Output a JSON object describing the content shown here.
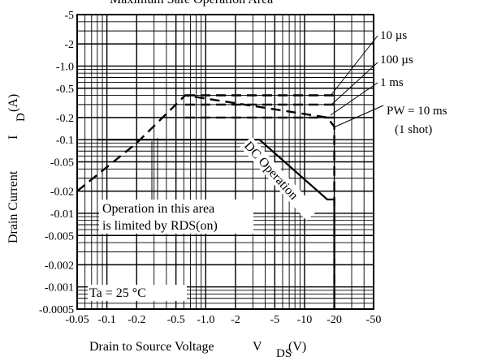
{
  "chart_data": {
    "type": "line",
    "title": "Maximum Safe Operation Area",
    "xlabel": "Drain to Source Voltage",
    "xlabel_symbol": "V",
    "xlabel_subscript": "DS",
    "xlabel_unit": "(V)",
    "ylabel": "Drain Current",
    "ylabel_symbol": "I",
    "ylabel_subscript": "D",
    "ylabel_unit": "(A)",
    "x_scale": "log",
    "y_scale": "log",
    "xlim": [
      -0.05,
      -50
    ],
    "ylim": [
      -0.0005,
      -5
    ],
    "grid": true,
    "x_ticks": [
      {
        "value": -0.05,
        "label": "-0.05"
      },
      {
        "value": -0.1,
        "label": "-0.1"
      },
      {
        "value": -0.2,
        "label": "-0.2"
      },
      {
        "value": -0.5,
        "label": "-0.5"
      },
      {
        "value": -1.0,
        "label": "-1.0"
      },
      {
        "value": -2,
        "label": "-2"
      },
      {
        "value": -5,
        "label": "-5"
      },
      {
        "value": -10,
        "label": "-10"
      },
      {
        "value": -20,
        "label": "-20"
      },
      {
        "value": -50,
        "label": "-50"
      }
    ],
    "y_ticks": [
      {
        "value": -5,
        "label": "-5"
      },
      {
        "value": -2,
        "label": "-2"
      },
      {
        "value": -1.0,
        "label": "-1.0"
      },
      {
        "value": -0.5,
        "label": "-0.5"
      },
      {
        "value": -0.2,
        "label": "-0.2"
      },
      {
        "value": -0.1,
        "label": "-0.1"
      },
      {
        "value": -0.05,
        "label": "-0.05"
      },
      {
        "value": -0.02,
        "label": "-0.02"
      },
      {
        "value": -0.01,
        "label": "-0.01"
      },
      {
        "value": -0.005,
        "label": "-0.005"
      },
      {
        "value": -0.002,
        "label": "-0.002"
      },
      {
        "value": -0.001,
        "label": "-0.001"
      },
      {
        "value": -0.0005,
        "label": "-0.0005"
      }
    ],
    "series": [
      {
        "name": "10 µs",
        "style": "dashed",
        "points": [
          [
            -0.62,
            -0.4
          ],
          [
            -20,
            -0.4
          ]
        ]
      },
      {
        "name": "100 µs",
        "style": "dashed",
        "points": [
          [
            -0.62,
            -0.3
          ],
          [
            -20,
            -0.3
          ]
        ]
      },
      {
        "name": "1 ms",
        "style": "dashed",
        "points": [
          [
            -0.62,
            -0.2
          ],
          [
            -20,
            -0.2
          ]
        ]
      },
      {
        "name": "PW = 10 ms",
        "style": "dashed",
        "points": [
          [
            -0.05,
            -0.02
          ],
          [
            -0.2,
            -0.09
          ],
          [
            -0.62,
            -0.4
          ],
          [
            -17,
            -0.2
          ],
          [
            -20,
            -0.15
          ],
          [
            -20,
            -0.0005
          ]
        ]
      },
      {
        "name": "DC Operation",
        "style": "solid",
        "points": [
          [
            -0.08,
            -0.1
          ],
          [
            -3.5,
            -0.1
          ],
          [
            -17,
            -0.0154
          ],
          [
            -20,
            -0.0154
          ],
          [
            -20,
            -0.0005
          ]
        ]
      }
    ],
    "annotations": [
      {
        "text": "10 µs"
      },
      {
        "text": "100 µs"
      },
      {
        "text": "1 ms"
      },
      {
        "text": "PW = 10 ms"
      },
      {
        "text": "(1 shot)"
      },
      {
        "text": "DC Operation"
      },
      {
        "text": "Operation in this area"
      },
      {
        "text": "is limited by RDS(on)"
      },
      {
        "text": "Ta = 25 °C"
      }
    ]
  }
}
